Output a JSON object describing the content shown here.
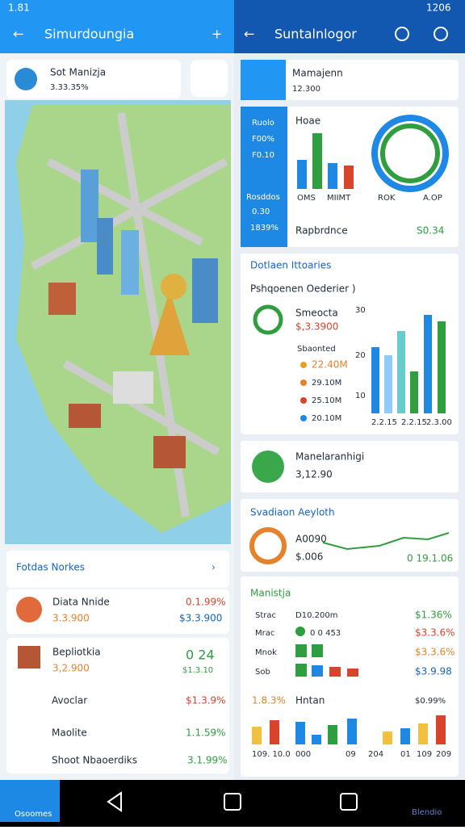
{
  "status": {
    "time": "1.81",
    "clock": "1206"
  },
  "left": {
    "title": "Simurdoungia",
    "search": {
      "name": "Sot Manizja",
      "value": "3.33.35%"
    },
    "list": {
      "title": "Fotdas Norkes",
      "items": [
        {
          "name": "Diata Nnide",
          "sub": "3.3.900",
          "delta": "0.1.99%",
          "value": "$3.3.900"
        },
        {
          "name": "Bepliotkia",
          "sub": "3,2.900",
          "delta": "0 24",
          "value": "$1.3.10"
        },
        {
          "name": "Avoclar",
          "value": "$1.3.9%"
        },
        {
          "name": "Maolite",
          "value": "1.1.59%"
        },
        {
          "name": "Shoot Nbaoerdiks",
          "value": "3.1.99%"
        }
      ]
    }
  },
  "right": {
    "title": "Suntalnlogor",
    "card": {
      "name": "Mamajenn",
      "value": "12.300"
    },
    "panel": {
      "side": [
        "Ruolo",
        "F00%",
        "F0.10",
        "Rosddos",
        "0.30",
        "1839%"
      ],
      "title": "Hoae",
      "labels": [
        "OMS",
        "MIIMT",
        "ROK",
        "A.OP"
      ],
      "footer": "Rapbrdnce",
      "footer_value": "S0.34"
    },
    "stats": {
      "title": "Dotlaen Ittoaries",
      "subtitle": "Pshqoenen Oederier )",
      "name": "Smeocta",
      "value": "$,3.3900",
      "legend_title": "Sbaonted",
      "legend": [
        "22.40M",
        "29.10M",
        "25.10M",
        "20.10M"
      ],
      "axis": [
        "30",
        "20",
        "10"
      ],
      "xlabels": [
        "2.2.15",
        "2.2.15",
        "2.3.00"
      ]
    },
    "place": {
      "name": "Manelaranhigi",
      "value": "3,12.90"
    },
    "trend": {
      "title": "Svadiaon Aeyloth",
      "name": "A0090",
      "value": "$.006",
      "delta": "0 19.1.06"
    },
    "table": {
      "title": "Manistja",
      "rows": [
        [
          "Strac",
          "D10.200m",
          "$1.36%"
        ],
        [
          "Mrac",
          "0 0 453",
          "$3.3.6%"
        ],
        [
          "Mnok",
          "",
          "$3.3.6%"
        ],
        [
          "Sob",
          "",
          "$3.9.98"
        ]
      ]
    },
    "bottom": {
      "left": "1.8.3%",
      "mid": "Hntan",
      "right": "$0.99%",
      "labels": [
        "109. 10.0",
        "000",
        "09",
        "204",
        "01",
        "109",
        "209"
      ]
    }
  },
  "nav": {
    "home": "Osoomes",
    "profile": "Blendio"
  }
}
